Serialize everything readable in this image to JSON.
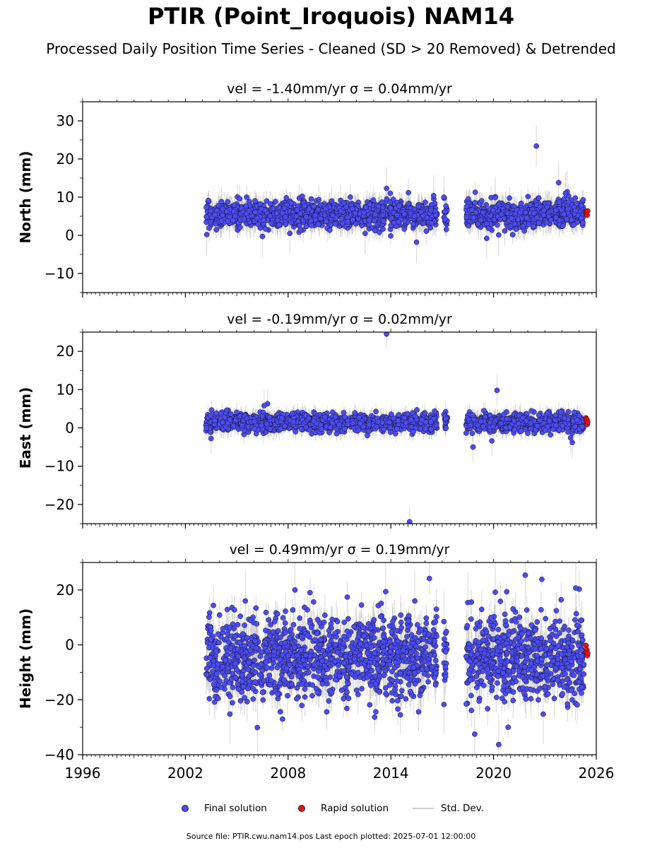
{
  "page": {
    "title": "PTIR (Point_Iroquois) NAM14",
    "subtitle": "Processed Daily Position Time Series - Cleaned (SD > 20 Removed) & Detrended",
    "footer": "Source file: PTIR.cwu.nam14.pos  Last epoch plotted: 2025-07-01 12:00:00"
  },
  "legend": {
    "final": "Final solution",
    "rapid": "Rapid solution",
    "stddev": "Std. Dev."
  },
  "colors": {
    "final": "#4b4bf5",
    "rapid": "#e81010",
    "stddev": "#bdbdbd"
  },
  "chart_data": [
    {
      "type": "scatter",
      "title": "vel = -1.40mm/yr   σ = 0.04mm/yr",
      "ylabel": "North (mm)",
      "xlim": [
        1996,
        2026
      ],
      "ylim": [
        -15,
        35
      ],
      "yticks": [
        -10,
        0,
        10,
        20,
        30
      ],
      "xticks": [
        1996,
        2002,
        2008,
        2014,
        2020,
        2026
      ],
      "show_xtick_labels": false,
      "series": [
        {
          "name": "Final solution",
          "segments": [
            [
              2003.2,
              2013.8
            ],
            [
              2013.9,
              2016.7
            ],
            [
              2017.1,
              2017.3
            ],
            [
              2018.4,
              2025.3
            ]
          ],
          "mean": 5.5,
          "scatter_sd": 1.7,
          "err_sd": 2.5,
          "outliers": [
            [
              2003.25,
              0.2
            ],
            [
              2012.5,
              0.5
            ],
            [
              2013.75,
              12.3
            ],
            [
              2015.5,
              -1.8
            ],
            [
              2019.6,
              -0.8
            ],
            [
              2020.3,
              0.1
            ],
            [
              2022.5,
              23.4
            ],
            [
              2023.8,
              13.8
            ],
            [
              2024.3,
              11.4
            ],
            [
              2024.2,
              11.0
            ],
            [
              2020.1,
              9.9
            ],
            [
              2017.1,
              10.0
            ],
            [
              2016.5,
              10.4
            ],
            [
              2008.1,
              0.5
            ],
            [
              2006.5,
              -0.3
            ]
          ]
        },
        {
          "name": "Rapid solution",
          "x": [
            2025.4,
            2025.42,
            2025.45,
            2025.47,
            2025.5
          ],
          "y": [
            6.3,
            5.6,
            6.1,
            5.3,
            6.4
          ]
        }
      ]
    },
    {
      "type": "scatter",
      "title": "vel = -0.19mm/yr   σ = 0.02mm/yr",
      "ylabel": "East (mm)",
      "xlim": [
        1996,
        2026
      ],
      "ylim": [
        -25,
        25
      ],
      "yticks": [
        -20,
        -10,
        0,
        10,
        20
      ],
      "xticks": [
        1996,
        2002,
        2008,
        2014,
        2020,
        2026
      ],
      "show_xtick_labels": false,
      "series": [
        {
          "name": "Final solution",
          "segments": [
            [
              2003.2,
              2013.8
            ],
            [
              2013.9,
              2016.7
            ],
            [
              2017.1,
              2017.3
            ],
            [
              2018.4,
              2025.3
            ]
          ],
          "mean": 1.4,
          "scatter_sd": 1.1,
          "err_sd": 1.8,
          "outliers": [
            [
              2013.75,
              24.5
            ],
            [
              2015.1,
              -24.5
            ],
            [
              2020.2,
              9.8
            ],
            [
              2018.8,
              -5.0
            ],
            [
              2006.8,
              6.3
            ],
            [
              2006.6,
              5.8
            ],
            [
              2003.5,
              -2.8
            ],
            [
              2024.6,
              -3.8
            ],
            [
              2024.5,
              -2.6
            ],
            [
              2019.9,
              -3.4
            ]
          ]
        },
        {
          "name": "Rapid solution",
          "x": [
            2025.4,
            2025.42,
            2025.45,
            2025.47,
            2025.5
          ],
          "y": [
            2.6,
            1.7,
            2.2,
            0.9,
            1.5
          ]
        }
      ]
    },
    {
      "type": "scatter",
      "title": "vel = 0.49mm/yr   σ = 0.19mm/yr",
      "ylabel": "Height (mm)",
      "xlim": [
        1996,
        2026
      ],
      "ylim": [
        -40,
        30
      ],
      "yticks": [
        -40,
        -20,
        0,
        20
      ],
      "xticks": [
        1996,
        2002,
        2008,
        2014,
        2020,
        2026
      ],
      "xtick_labels": [
        "1996",
        "2002",
        "2008",
        "2014",
        "2020",
        "2026"
      ],
      "show_xtick_labels": true,
      "series": [
        {
          "name": "Final solution",
          "segments": [
            [
              2003.2,
              2013.8
            ],
            [
              2013.9,
              2016.7
            ],
            [
              2017.1,
              2017.3
            ],
            [
              2018.4,
              2025.3
            ]
          ],
          "mean": -4.5,
          "scatter_sd": 7.5,
          "err_sd": 5.0,
          "outliers": [
            [
              2021.85,
              25.4
            ],
            [
              2020.1,
              19.2
            ],
            [
              2008.4,
              20.0
            ],
            [
              2013.7,
              19.4
            ],
            [
              2024.8,
              20.7
            ],
            [
              2018.5,
              15.4
            ],
            [
              2020.3,
              -36.3
            ],
            [
              2006.2,
              -30.1
            ],
            [
              2018.9,
              -32.5
            ],
            [
              2004.6,
              -25.2
            ],
            [
              2017.1,
              -21.7
            ],
            [
              2017.1,
              8.5
            ],
            [
              2022.9,
              -25.2
            ],
            [
              2015.4,
              16.0
            ],
            [
              2005.5,
              16.0
            ]
          ]
        },
        {
          "name": "Rapid solution",
          "x": [
            2025.4,
            2025.42,
            2025.45,
            2025.47,
            2025.5
          ],
          "y": [
            -0.2,
            -2.6,
            -1.8,
            -3.9,
            -3.0
          ]
        }
      ]
    }
  ]
}
